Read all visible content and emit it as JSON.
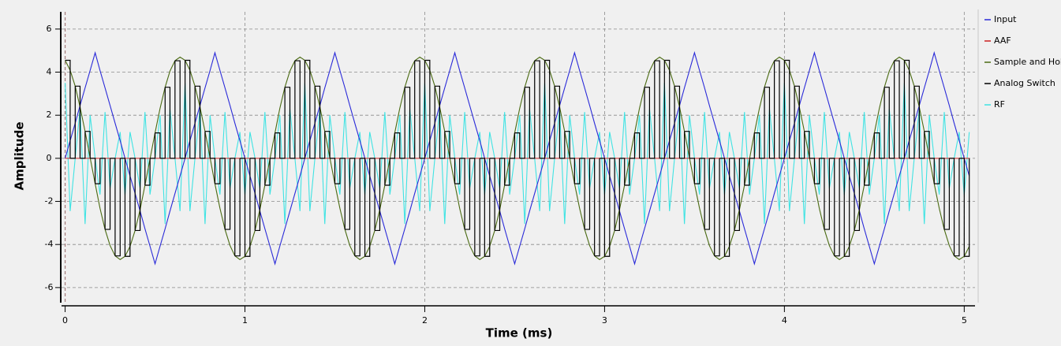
{
  "chart_data": {
    "type": "line",
    "xlabel": "Time (ms)",
    "ylabel": "Amplitude",
    "xlim": [
      -0.02,
      5.06
    ],
    "xticks": [
      0,
      1,
      2,
      3,
      4,
      5
    ],
    "ylim": [
      -6.7,
      6.8
    ],
    "yticks": [
      -6,
      -4,
      -2,
      0,
      2,
      4,
      6
    ],
    "grid": true,
    "legend": "right",
    "x": [
      0,
      0.028,
      0.056,
      0.083,
      0.111,
      0.139,
      0.167,
      0.194,
      0.222,
      0.25,
      0.278,
      0.306,
      0.333,
      0.361,
      0.389,
      0.417,
      0.444,
      0.472,
      0.5,
      0.528,
      0.556,
      0.583,
      0.611,
      0.639,
      0.667,
      0.694,
      0.722,
      0.75,
      0.778,
      0.806,
      0.833,
      0.861,
      0.889,
      0.917,
      0.944,
      0.972,
      1,
      1.028,
      1.056,
      1.083,
      1.111,
      1.139,
      1.167,
      1.194,
      1.222,
      1.25,
      1.278,
      1.306,
      1.333,
      1.361,
      1.389,
      1.417,
      1.444,
      1.472,
      1.5,
      1.528,
      1.556,
      1.583,
      1.611,
      1.639,
      1.667,
      1.694,
      1.722,
      1.75,
      1.778,
      1.806,
      1.833,
      1.861,
      1.889,
      1.917,
      1.944,
      1.972,
      2,
      2.028,
      2.056,
      2.083,
      2.111,
      2.139,
      2.167,
      2.194,
      2.222,
      2.25,
      2.278,
      2.306,
      2.333,
      2.361,
      2.389,
      2.417,
      2.444,
      2.472,
      2.5,
      2.528,
      2.556,
      2.583,
      2.611,
      2.639,
      2.667,
      2.694,
      2.722,
      2.75,
      2.778,
      2.806,
      2.833,
      2.861,
      2.889,
      2.917,
      2.944,
      2.972,
      3,
      3.028,
      3.056,
      3.083,
      3.111,
      3.139,
      3.167,
      3.194,
      3.222,
      3.25,
      3.278,
      3.306,
      3.333,
      3.361,
      3.389,
      3.417,
      3.444,
      3.472,
      3.5,
      3.528,
      3.556,
      3.583,
      3.611,
      3.639,
      3.667,
      3.694,
      3.722,
      3.75,
      3.778,
      3.806,
      3.833,
      3.861,
      3.889,
      3.917,
      3.944,
      3.972,
      4,
      4.028,
      4.056,
      4.083,
      4.111,
      4.139,
      4.167,
      4.194,
      4.222,
      4.25,
      4.278,
      4.306,
      4.333,
      4.361,
      4.389,
      4.417,
      4.444,
      4.472,
      4.5,
      4.528,
      4.556,
      4.583,
      4.611,
      4.639,
      4.667,
      4.694,
      4.722,
      4.75,
      4.778,
      4.806,
      4.833,
      4.861,
      4.889,
      4.917,
      4.944,
      4.972,
      5,
      5.028
    ],
    "series": [
      {
        "name": "RF",
        "color": "#3fe3e3",
        "values": [
          3.5,
          -2.45,
          0,
          2.29,
          -3.05,
          2,
          0,
          -1.68,
          2.15,
          -1.39,
          0,
          1.22,
          -1.7,
          1.22,
          0,
          -1.39,
          2.15,
          -1.68,
          0,
          2,
          -3.05,
          2.29,
          0,
          -2.45,
          3.5,
          -2.45,
          0,
          2.29,
          -3.05,
          2,
          0,
          -1.68,
          2.15,
          -1.39,
          0,
          1.22,
          -1.7,
          1.22,
          0,
          -1.39,
          2.15,
          -1.68,
          0,
          2,
          -3.05,
          2.29,
          0,
          -2.45,
          3.5,
          -2.45,
          0,
          2.29,
          -3.05,
          2,
          0,
          -1.68,
          2.15,
          -1.39,
          0,
          1.22,
          -1.7,
          1.22,
          0,
          -1.39,
          2.15,
          -1.68,
          0,
          2,
          -3.05,
          2.29,
          0,
          -2.45,
          3.5,
          -2.45,
          0,
          2.29,
          -3.05,
          2,
          0,
          -1.68,
          2.15,
          -1.39,
          0,
          1.22,
          -1.7,
          1.22,
          0,
          -1.39,
          2.15,
          -1.68,
          0,
          2,
          -3.05,
          2.29,
          0,
          -2.45,
          3.5,
          -2.45,
          0,
          2.29,
          -3.05,
          2,
          0,
          -1.68,
          2.15,
          -1.39,
          0,
          1.22,
          -1.7,
          1.22,
          0,
          -1.39,
          2.15,
          -1.68,
          0,
          2,
          -3.05,
          2.29,
          0,
          -2.45,
          3.5,
          -2.45,
          0,
          2.29,
          -3.05,
          2,
          0,
          -1.68,
          2.15,
          -1.39,
          0,
          1.22,
          -1.7,
          1.22,
          0,
          -1.39,
          2.15,
          -1.68,
          0,
          2,
          -3.05,
          2.29,
          0,
          -2.45,
          3.5,
          -2.45,
          0,
          2.29,
          -3.05,
          2,
          0,
          -1.68,
          2.15,
          -1.39,
          0,
          1.22,
          -1.7,
          1.22,
          0,
          -1.39,
          2.15,
          -1.68,
          0,
          2,
          -3.05,
          2.29,
          0,
          -2.45,
          3.5,
          -2.45,
          0,
          2.29,
          -3.05,
          2,
          0,
          -1.68,
          2.15,
          -1.39,
          0,
          1.22,
          -1.7,
          1.22
        ]
      },
      {
        "name": "Input",
        "color": "#2a2ad8",
        "values": [
          0,
          0.82,
          1.63,
          2.45,
          3.27,
          4.08,
          4.9,
          4.08,
          3.27,
          2.45,
          1.63,
          0.82,
          0,
          -0.82,
          -1.63,
          -2.45,
          -3.27,
          -4.08,
          -4.9,
          -4.08,
          -3.27,
          -2.45,
          -1.63,
          -0.82,
          0,
          0.82,
          1.63,
          2.45,
          3.27,
          4.08,
          4.9,
          4.08,
          3.27,
          2.45,
          1.63,
          0.82,
          0,
          -0.82,
          -1.63,
          -2.45,
          -3.27,
          -4.08,
          -4.9,
          -4.08,
          -3.27,
          -2.45,
          -1.63,
          -0.82,
          0,
          0.82,
          1.63,
          2.45,
          3.27,
          4.08,
          4.9,
          4.08,
          3.27,
          2.45,
          1.63,
          0.82,
          0,
          -0.82,
          -1.63,
          -2.45,
          -3.27,
          -4.08,
          -4.9,
          -4.08,
          -3.27,
          -2.45,
          -1.63,
          -0.82,
          0,
          0.82,
          1.63,
          2.45,
          3.27,
          4.08,
          4.9,
          4.08,
          3.27,
          2.45,
          1.63,
          0.82,
          0,
          -0.82,
          -1.63,
          -2.45,
          -3.27,
          -4.08,
          -4.9,
          -4.08,
          -3.27,
          -2.45,
          -1.63,
          -0.82,
          0,
          0.82,
          1.63,
          2.45,
          3.27,
          4.08,
          4.9,
          4.08,
          3.27,
          2.45,
          1.63,
          0.82,
          0,
          -0.82,
          -1.63,
          -2.45,
          -3.27,
          -4.08,
          -4.9,
          -4.08,
          -3.27,
          -2.45,
          -1.63,
          -0.82,
          0,
          0.82,
          1.63,
          2.45,
          3.27,
          4.08,
          4.9,
          4.08,
          3.27,
          2.45,
          1.63,
          0.82,
          0,
          -0.82,
          -1.63,
          -2.45,
          -3.27,
          -4.08,
          -4.9,
          -4.08,
          -3.27,
          -2.45,
          -1.63,
          -0.82,
          0,
          0.82,
          1.63,
          2.45,
          3.27,
          4.08,
          4.9,
          4.08,
          3.27,
          2.45,
          1.63,
          0.82,
          0,
          -0.82,
          -1.63,
          -2.45,
          -3.27,
          -4.08,
          -4.9,
          -4.08,
          -3.27,
          -2.45,
          -1.63,
          -0.82,
          0,
          0.82,
          1.63,
          2.45,
          3.27,
          4.08,
          4.9,
          4.08,
          3.27,
          2.45,
          1.63,
          0.82,
          0,
          -0.82
        ]
      },
      {
        "name": "AAF",
        "color": "#cc2020",
        "values": [
          0,
          0,
          0,
          0,
          0,
          0,
          0,
          0,
          0,
          0,
          0,
          0,
          0,
          0,
          0,
          0,
          0,
          0,
          0,
          0,
          0,
          0,
          0,
          0,
          0,
          0,
          0,
          0,
          0,
          0,
          0,
          0,
          0,
          0,
          0,
          0,
          0,
          0,
          0,
          0,
          0,
          0,
          0,
          0,
          0,
          0,
          0,
          0,
          0,
          0,
          0,
          0,
          0,
          0,
          0,
          0,
          0,
          0,
          0,
          0,
          0,
          0,
          0,
          0,
          0,
          0,
          0,
          0,
          0,
          0,
          0,
          0,
          0,
          0,
          0,
          0,
          0,
          0,
          0,
          0,
          0,
          0,
          0,
          0,
          0,
          0,
          0,
          0,
          0,
          0,
          0,
          0,
          0,
          0,
          0,
          0,
          0,
          0,
          0,
          0,
          0,
          0,
          0,
          0,
          0,
          0,
          0,
          0,
          0,
          0,
          0,
          0,
          0,
          0,
          0,
          0,
          0,
          0,
          0,
          0,
          0,
          0,
          0,
          0,
          0,
          0,
          0,
          0,
          0,
          0,
          0,
          0,
          0,
          0,
          0,
          0,
          0,
          0,
          0,
          0,
          0,
          0,
          0,
          0,
          0,
          0,
          0,
          0,
          0,
          0,
          0,
          0,
          0,
          0,
          0,
          0,
          0,
          0,
          0,
          0,
          0,
          0,
          0,
          0,
          0,
          0,
          0,
          0,
          0,
          0,
          0,
          0,
          0,
          0,
          0,
          0,
          0,
          0,
          0,
          0,
          0,
          0
        ]
      },
      {
        "name": "Sample and Hold",
        "color": "#4a6a12",
        "values": [
          4.55,
          4.09,
          3.35,
          2.38,
          1.25,
          0.03,
          -1.18,
          -2.32,
          -3.3,
          -4.05,
          -4.53,
          -4.7,
          -4.55,
          -4.09,
          -3.35,
          -2.38,
          -1.25,
          -0.03,
          1.18,
          2.32,
          3.3,
          4.05,
          4.53,
          4.7,
          4.55,
          4.09,
          3.35,
          2.38,
          1.25,
          0.03,
          -1.18,
          -2.32,
          -3.3,
          -4.05,
          -4.53,
          -4.7,
          -4.55,
          -4.09,
          -3.35,
          -2.38,
          -1.25,
          -0.03,
          1.18,
          2.32,
          3.3,
          4.05,
          4.53,
          4.7,
          4.55,
          4.09,
          3.35,
          2.38,
          1.25,
          0.03,
          -1.18,
          -2.32,
          -3.3,
          -4.05,
          -4.53,
          -4.7,
          -4.55,
          -4.09,
          -3.35,
          -2.38,
          -1.25,
          -0.03,
          1.18,
          2.32,
          3.3,
          4.05,
          4.53,
          4.7,
          4.55,
          4.09,
          3.35,
          2.38,
          1.25,
          0.03,
          -1.18,
          -2.32,
          -3.3,
          -4.05,
          -4.53,
          -4.7,
          -4.55,
          -4.09,
          -3.35,
          -2.38,
          -1.25,
          -0.03,
          1.18,
          2.32,
          3.3,
          4.05,
          4.53,
          4.7,
          4.55,
          4.09,
          3.35,
          2.38,
          1.25,
          0.03,
          -1.18,
          -2.32,
          -3.3,
          -4.05,
          -4.53,
          -4.7,
          -4.55,
          -4.09,
          -3.35,
          -2.38,
          -1.25,
          -0.03,
          1.18,
          2.32,
          3.3,
          4.05,
          4.53,
          4.7,
          4.55,
          4.09,
          3.35,
          2.38,
          1.25,
          0.03,
          -1.18,
          -2.32,
          -3.3,
          -4.05,
          -4.53,
          -4.7,
          -4.55,
          -4.09,
          -3.35,
          -2.38,
          -1.25,
          -0.03,
          1.18,
          2.32,
          3.3,
          4.05,
          4.53,
          4.7,
          4.55,
          4.09,
          3.35,
          2.38,
          1.25,
          0.03,
          -1.18,
          -2.32,
          -3.3,
          -4.05,
          -4.53,
          -4.7,
          -4.55,
          -4.09,
          -3.35,
          -2.38,
          -1.25,
          -0.03,
          1.18,
          2.32,
          3.3,
          4.05,
          4.53,
          4.7,
          4.55,
          4.09,
          3.35,
          2.38,
          1.25,
          0.03,
          -1.18,
          -2.32,
          -3.3,
          -4.05,
          -4.53,
          -4.7,
          -4.55,
          -4.09
        ]
      },
      {
        "name": "Analog Switch",
        "color": "#000000",
        "step": true,
        "values": [
          4.55,
          0,
          3.35,
          0,
          1.25,
          0,
          -1.18,
          0,
          -3.3,
          0,
          -4.53,
          0,
          -4.55,
          0,
          -3.35,
          0,
          -1.25,
          0,
          1.18,
          0,
          3.3,
          0,
          4.53,
          0,
          4.55,
          0,
          3.35,
          0,
          1.25,
          0,
          -1.18,
          0,
          -3.3,
          0,
          -4.53,
          0,
          -4.55,
          0,
          -3.35,
          0,
          -1.25,
          0,
          1.18,
          0,
          3.3,
          0,
          4.53,
          0,
          4.55,
          0,
          3.35,
          0,
          1.25,
          0,
          -1.18,
          0,
          -3.3,
          0,
          -4.53,
          0,
          -4.55,
          0,
          -3.35,
          0,
          -1.25,
          0,
          1.18,
          0,
          3.3,
          0,
          4.53,
          0,
          4.55,
          0,
          3.35,
          0,
          1.25,
          0,
          -1.18,
          0,
          -3.3,
          0,
          -4.53,
          0,
          -4.55,
          0,
          -3.35,
          0,
          -1.25,
          0,
          1.18,
          0,
          3.3,
          0,
          4.53,
          0,
          4.55,
          0,
          3.35,
          0,
          1.25,
          0,
          -1.18,
          0,
          -3.3,
          0,
          -4.53,
          0,
          -4.55,
          0,
          -3.35,
          0,
          -1.25,
          0,
          1.18,
          0,
          3.3,
          0,
          4.53,
          0,
          4.55,
          0,
          3.35,
          0,
          1.25,
          0,
          -1.18,
          0,
          -3.3,
          0,
          -4.53,
          0,
          -4.55,
          0,
          -3.35,
          0,
          -1.25,
          0,
          1.18,
          0,
          3.3,
          0,
          4.53,
          0,
          4.55,
          0,
          3.35,
          0,
          1.25,
          0,
          -1.18,
          0,
          -3.3,
          0,
          -4.53,
          0,
          -4.55,
          0,
          -3.35,
          0,
          -1.25,
          0,
          1.18,
          0,
          3.3,
          0,
          4.53,
          0,
          4.55,
          0,
          3.35,
          0,
          1.25,
          0,
          -1.18,
          0,
          -3.3,
          0,
          -4.53,
          0,
          -4.55,
          0
        ]
      }
    ],
    "legend_order": [
      "Input",
      "AAF",
      "Sample and Hold",
      "Analog Switch",
      "RF"
    ]
  }
}
